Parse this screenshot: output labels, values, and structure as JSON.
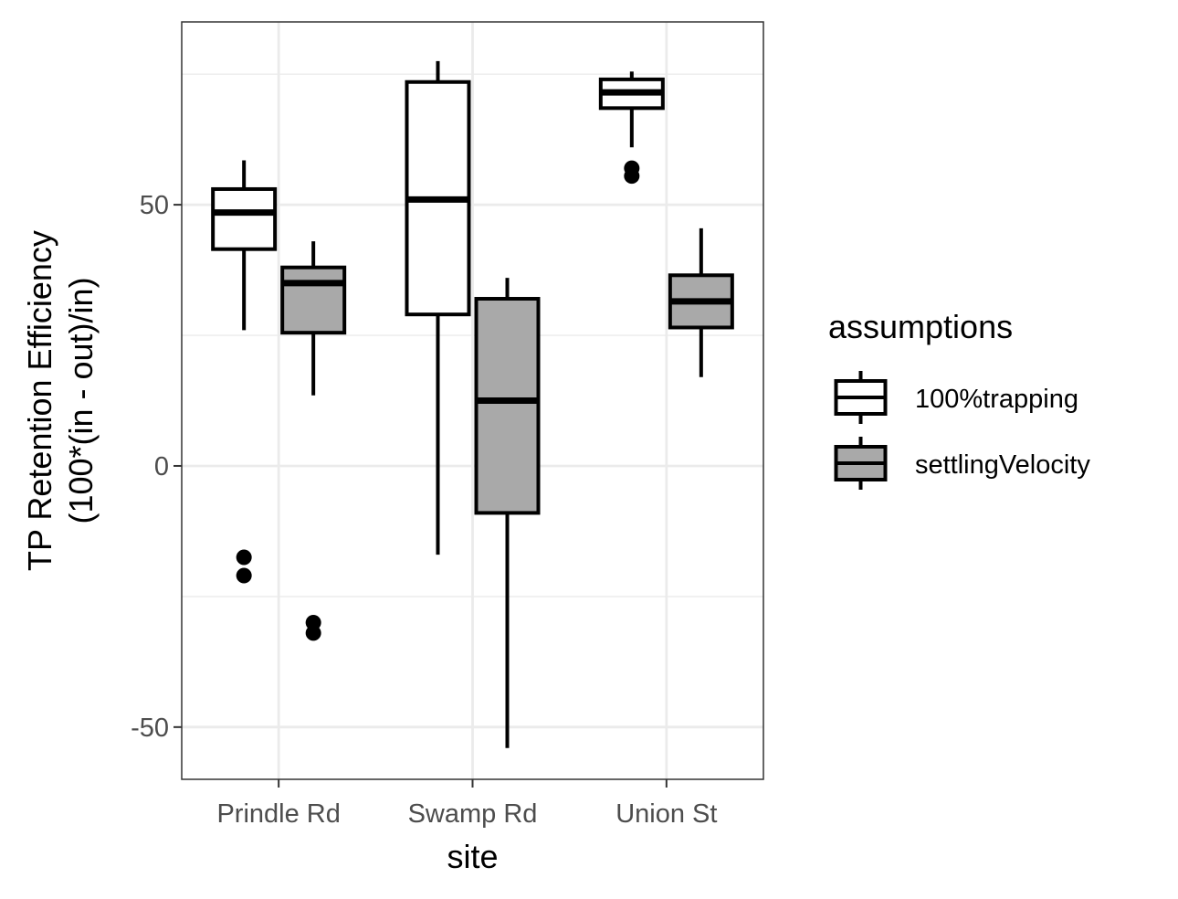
{
  "chart_data": {
    "type": "boxplot",
    "xlabel": "site",
    "ylabel": [
      "TP Retention Efficiency",
      "(100*(in - out)/in)"
    ],
    "ylim": [
      -60,
      85
    ],
    "yticks": [
      -50,
      0,
      50
    ],
    "ytick_labels": [
      "-50",
      "0",
      "50"
    ],
    "categories": [
      "Prindle Rd",
      "Swamp Rd",
      "Union St"
    ],
    "grid": true,
    "legend": {
      "title": "assumptions",
      "position": "right"
    },
    "series": [
      {
        "name": "100%trapping",
        "fill": "#ffffff",
        "boxes": [
          {
            "whisker_low": 26,
            "q1": 41.5,
            "median": 48.5,
            "q3": 53,
            "whisker_high": 58.5,
            "outliers": [
              -17.5,
              -21
            ]
          },
          {
            "whisker_low": -17,
            "q1": 29,
            "median": 51,
            "q3": 73.5,
            "whisker_high": 77.5,
            "outliers": []
          },
          {
            "whisker_low": 61,
            "q1": 68.5,
            "median": 71.5,
            "q3": 74,
            "whisker_high": 75.5,
            "outliers": [
              57,
              55.5
            ]
          }
        ]
      },
      {
        "name": "settlingVelocity",
        "fill": "#a9a9a9",
        "boxes": [
          {
            "whisker_low": 13.5,
            "q1": 25.5,
            "median": 35,
            "q3": 38,
            "whisker_high": 43,
            "outliers": [
              -30,
              -32
            ]
          },
          {
            "whisker_low": -54,
            "q1": -9,
            "median": 12.5,
            "q3": 32,
            "whisker_high": 36,
            "outliers": []
          },
          {
            "whisker_low": 17,
            "q1": 26.5,
            "median": 31.5,
            "q3": 36.5,
            "whisker_high": 45.5,
            "outliers": []
          }
        ]
      }
    ]
  }
}
